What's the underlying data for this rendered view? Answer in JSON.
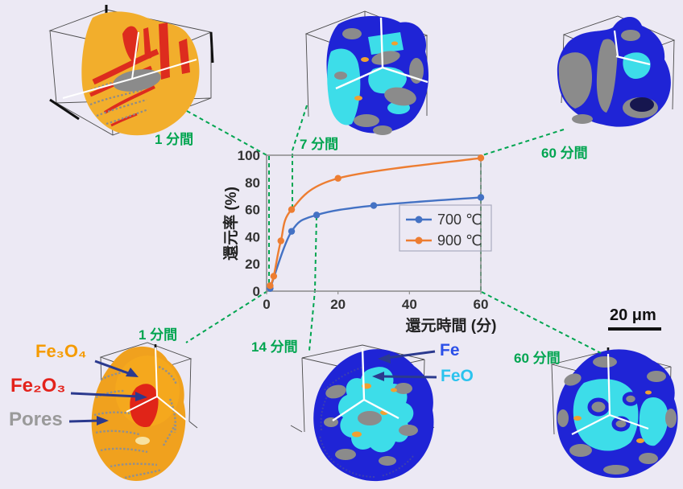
{
  "page": {
    "background": "#ECE9F4"
  },
  "chart_data": {
    "type": "line",
    "title": "",
    "xlabel": "還元時間 (分)",
    "ylabel": "還元率 (%)",
    "xlim": [
      0,
      60
    ],
    "ylim": [
      0,
      100
    ],
    "xticks": [
      0,
      20,
      40,
      60
    ],
    "yticks": [
      0,
      20,
      40,
      60,
      80,
      100
    ],
    "grid": false,
    "legend_position": "inside-right",
    "series": [
      {
        "name": "700 ℃",
        "color": "#4472C4",
        "x": [
          1,
          7,
          14,
          30,
          60
        ],
        "y": [
          2,
          44,
          56,
          63,
          69
        ]
      },
      {
        "name": "900 ℃",
        "color": "#ED7D31",
        "x": [
          1,
          2,
          4,
          7,
          20,
          60
        ],
        "y": [
          4,
          11,
          37,
          60,
          83,
          98
        ]
      }
    ]
  },
  "figures": {
    "top_left": {
      "label": "1 分間",
      "content": "hematite-magnetite particle, 700C 1 min"
    },
    "top_center": {
      "label": "7 分間",
      "content": "wustite-iron particle, 7 min"
    },
    "top_right": {
      "label": "60 分間",
      "content": "reduced iron particle, 60 min"
    },
    "bottom_left": {
      "label": "1 分間",
      "annotations": [
        {
          "text": "Fe₃O₄",
          "color": "#F59B00"
        },
        {
          "text": "Fe₂O₃",
          "color": "#E3231C"
        },
        {
          "text": "Pores",
          "color": "#9A9A9A"
        }
      ]
    },
    "bottom_center": {
      "label": "14 分間",
      "annotations": [
        {
          "text": "Fe",
          "color": "#2B50E8"
        },
        {
          "text": "FeO",
          "color": "#2BC3EE"
        }
      ]
    },
    "bottom_right": {
      "label": "60 分間"
    }
  },
  "scale_bar": {
    "text": "20 μm"
  },
  "colors": {
    "connector_green": "#00A550",
    "particle_yellow": "#F2AE2C",
    "particle_orange": "#F0A11E",
    "hematite_red": "#DD2C1E",
    "pore_gray": "#8B8B8B",
    "iron_blue": "#1F24D6",
    "wustite_cyan": "#3DDDE9",
    "arrow_navy": "#2B3A8E",
    "axis_gray": "#8F8F8F",
    "tick_text": "#333333"
  }
}
